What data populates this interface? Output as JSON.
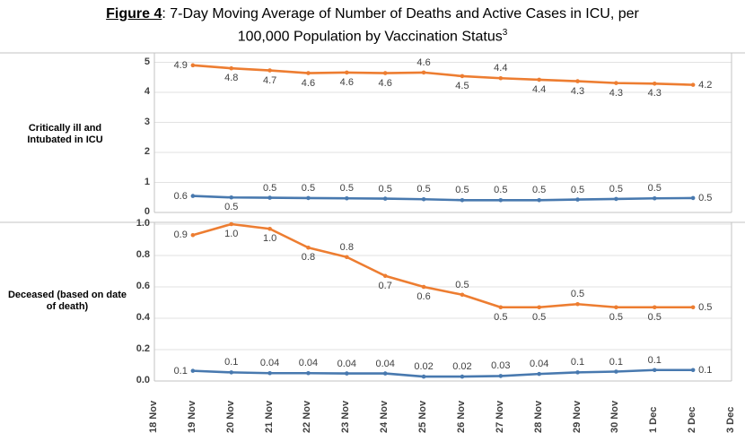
{
  "title": {
    "figure_label": "Figure 4",
    "line1": ": 7-Day Moving Average of Number of Deaths and Active Cases in ICU, per",
    "line2": "100,000 Population by Vaccination Status",
    "superscript": "3"
  },
  "colors": {
    "orange": "#ED7D31",
    "blue": "#4879AF",
    "grid": "#E2E2E2",
    "border": "#C3C3C3",
    "axis_text": "#404040"
  },
  "x_axis": {
    "categories": [
      "18 Nov",
      "19 Nov",
      "20 Nov",
      "21 Nov",
      "22 Nov",
      "23 Nov",
      "24 Nov",
      "25 Nov",
      "26 Nov",
      "27 Nov",
      "28 Nov",
      "29 Nov",
      "30 Nov",
      "1 Dec",
      "2 Dec",
      "3 Dec"
    ]
  },
  "chart_data": [
    {
      "type": "line",
      "panel_label": "Critically ill and Intubated in ICU",
      "ylim": [
        0,
        5
      ],
      "ytick_labels": [
        "5",
        "4",
        "3",
        "2",
        "1",
        "0"
      ],
      "ytick_values": [
        5,
        4,
        3,
        2,
        1,
        0
      ],
      "grid_values": [
        1,
        2,
        3,
        4,
        5
      ],
      "x_categories_with_points": [
        "19 Nov",
        "20 Nov",
        "21 Nov",
        "22 Nov",
        "23 Nov",
        "24 Nov",
        "25 Nov",
        "26 Nov",
        "27 Nov",
        "28 Nov",
        "29 Nov",
        "30 Nov",
        "1 Dec",
        "2 Dec"
      ],
      "series": [
        {
          "name": "icu-orange",
          "color": "#ED7D31",
          "values": [
            4.9,
            4.8,
            4.7,
            4.6,
            4.6,
            4.6,
            4.6,
            4.5,
            4.4,
            4.4,
            4.3,
            4.3,
            4.3,
            4.2
          ],
          "labels": [
            "4.9",
            "4.8",
            "4.7",
            "4.6",
            "4.6",
            "4.6",
            "4.6",
            "4.5",
            "4.4",
            "4.4",
            "4.3",
            "4.3",
            "4.3",
            "4.2"
          ],
          "label_pos": [
            "left",
            "below",
            "below",
            "below",
            "below",
            "below",
            "above",
            "below",
            "above",
            "below",
            "below",
            "below",
            "below",
            "right"
          ],
          "plot_y": [
            4.9,
            4.8,
            4.73,
            4.64,
            4.66,
            4.64,
            4.66,
            4.54,
            4.47,
            4.42,
            4.37,
            4.31,
            4.29,
            4.25
          ]
        },
        {
          "name": "icu-blue",
          "color": "#4879AF",
          "values": [
            0.6,
            0.5,
            0.5,
            0.5,
            0.5,
            0.5,
            0.5,
            0.5,
            0.5,
            0.5,
            0.5,
            0.5,
            0.5,
            0.5
          ],
          "labels": [
            "0.6",
            "0.5",
            "0.5",
            "0.5",
            "0.5",
            "0.5",
            "0.5",
            "0.5",
            "0.5",
            "0.5",
            "0.5",
            "0.5",
            "0.5",
            "0.5"
          ],
          "label_pos": [
            "left",
            "below",
            "above",
            "above",
            "above",
            "above",
            "above",
            "above",
            "above",
            "above",
            "above",
            "above",
            "above",
            "right"
          ],
          "plot_y": [
            0.55,
            0.5,
            0.49,
            0.48,
            0.47,
            0.46,
            0.44,
            0.41,
            0.41,
            0.41,
            0.43,
            0.45,
            0.47,
            0.48
          ]
        }
      ]
    },
    {
      "type": "line",
      "panel_label": "Deceased (based on date of death)",
      "ylim": [
        0,
        1
      ],
      "ytick_labels": [
        "1.0",
        "0.8",
        "0.6",
        "0.4",
        "0.2",
        "0.0"
      ],
      "ytick_values": [
        1.0,
        0.8,
        0.6,
        0.4,
        0.2,
        0.0
      ],
      "grid_values": [
        0.2,
        0.4,
        0.6,
        0.8,
        1.0
      ],
      "x_categories_with_points": [
        "19 Nov",
        "20 Nov",
        "21 Nov",
        "22 Nov",
        "23 Nov",
        "24 Nov",
        "25 Nov",
        "26 Nov",
        "27 Nov",
        "28 Nov",
        "29 Nov",
        "30 Nov",
        "1 Dec",
        "2 Dec"
      ],
      "series": [
        {
          "name": "deceased-orange",
          "color": "#ED7D31",
          "values": [
            0.9,
            1.0,
            1.0,
            0.8,
            0.8,
            0.7,
            0.6,
            0.5,
            0.5,
            0.5,
            0.5,
            0.5,
            0.5,
            0.5
          ],
          "labels": [
            "0.9",
            "1.0",
            "1.0",
            "0.8",
            "0.8",
            "0.7",
            "0.6",
            "0.5",
            "0.5",
            "0.5",
            "0.5",
            "0.5",
            "0.5",
            "0.5"
          ],
          "label_pos": [
            "left",
            "below",
            "below",
            "below",
            "above",
            "below",
            "below",
            "above",
            "below",
            "below",
            "above",
            "below",
            "below",
            "right"
          ],
          "plot_y": [
            0.93,
            1.0,
            0.97,
            0.85,
            0.79,
            0.67,
            0.6,
            0.55,
            0.47,
            0.47,
            0.49,
            0.47,
            0.47,
            0.47
          ]
        },
        {
          "name": "deceased-blue",
          "color": "#4879AF",
          "values": [
            0.1,
            0.1,
            0.04,
            0.04,
            0.04,
            0.04,
            0.02,
            0.02,
            0.03,
            0.04,
            0.1,
            0.1,
            0.1,
            0.1
          ],
          "labels": [
            "0.1",
            "0.1",
            "0.04",
            "0.04",
            "0.04",
            "0.04",
            "0.02",
            "0.02",
            "0.03",
            "0.04",
            "0.1",
            "0.1",
            "0.1",
            "0.1"
          ],
          "label_pos": [
            "left",
            "above",
            "above",
            "above",
            "above",
            "above",
            "above",
            "above",
            "above",
            "above",
            "above",
            "above",
            "above",
            "right"
          ],
          "plot_y": [
            0.065,
            0.055,
            0.05,
            0.05,
            0.048,
            0.048,
            0.028,
            0.028,
            0.032,
            0.045,
            0.055,
            0.06,
            0.07,
            0.07
          ]
        }
      ]
    }
  ]
}
